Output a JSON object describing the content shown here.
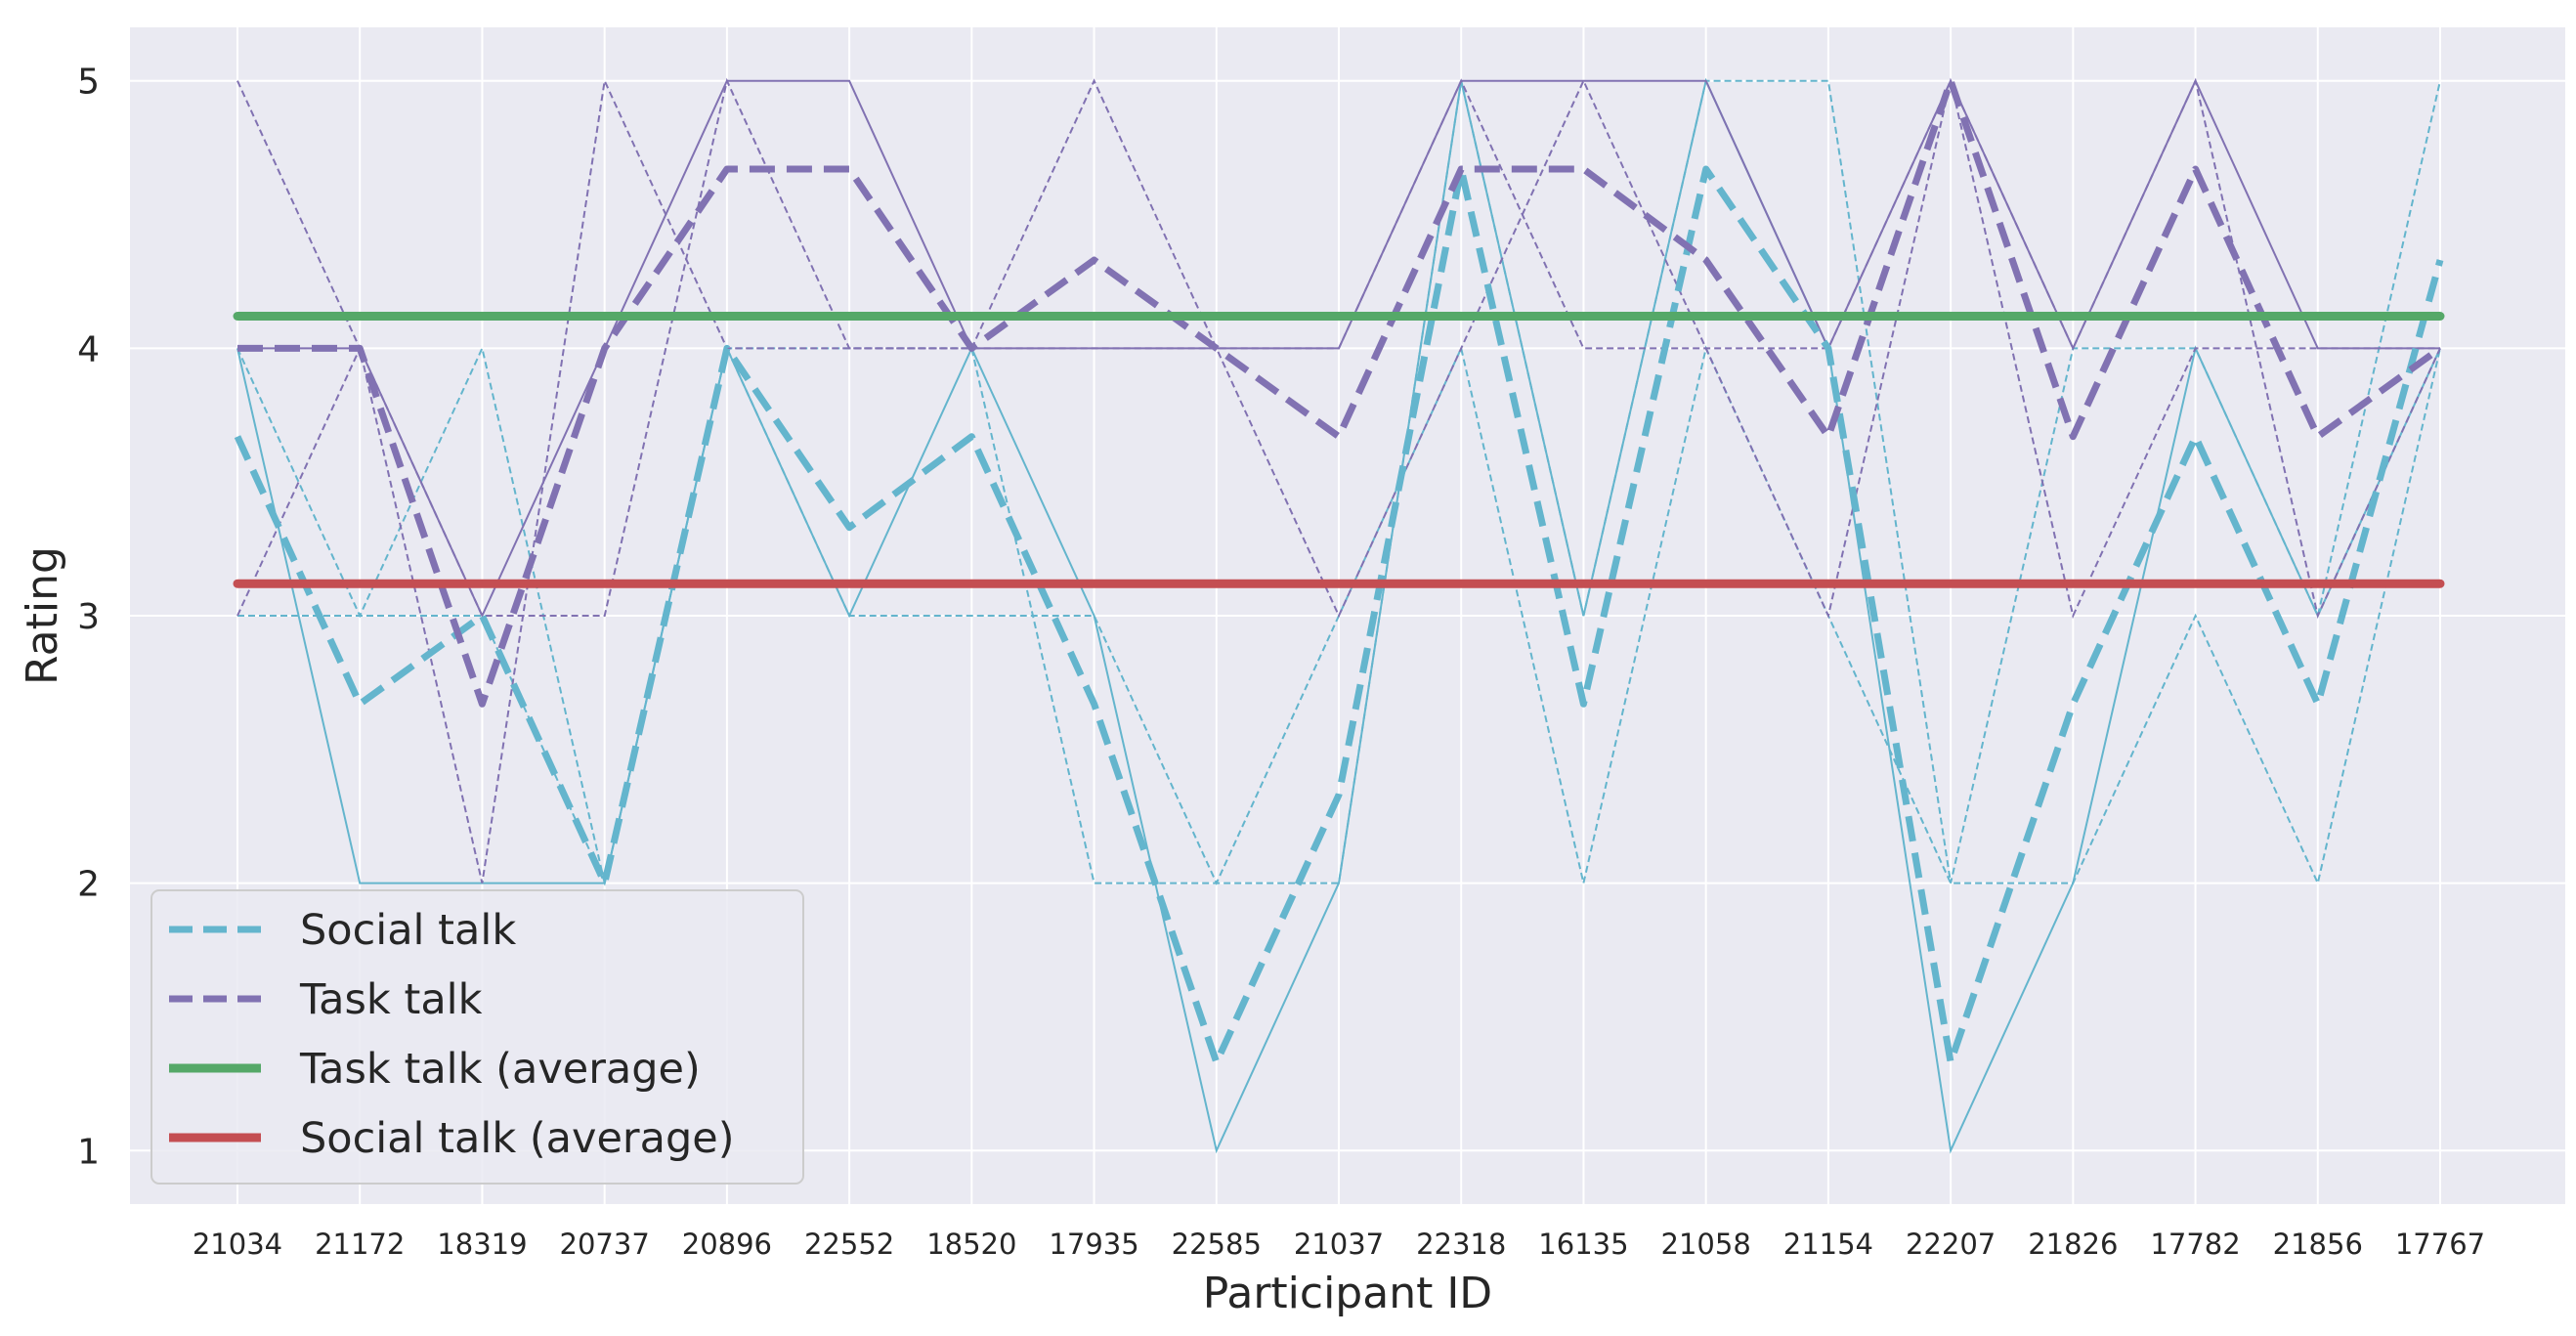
{
  "chart_data": {
    "type": "line",
    "title": "",
    "xlabel": "Participant ID",
    "ylabel": "Rating",
    "categories": [
      "21034",
      "21172",
      "18319",
      "20737",
      "20896",
      "22552",
      "18520",
      "17935",
      "22585",
      "21037",
      "22318",
      "16135",
      "21058",
      "21154",
      "22207",
      "21826",
      "17782",
      "21856",
      "17767"
    ],
    "ylim": [
      0.8,
      5.2
    ],
    "yticks": [
      1,
      2,
      3,
      4,
      5
    ],
    "grid": true,
    "legend_position": "lower-left",
    "colors": {
      "social": "#64b5cd",
      "task": "#8172b2",
      "task_avg": "#55a868",
      "social_avg": "#c44e52",
      "background": "#eaeaf2",
      "grid": "#ffffff"
    },
    "series": [
      {
        "name": "Social talk",
        "style": "dashed-thick",
        "color": "#64b5cd",
        "values": [
          3.67,
          2.67,
          3,
          2,
          4,
          3.33,
          3.67,
          2.67,
          1.33,
          2.33,
          4.67,
          2.67,
          4.67,
          4,
          1.33,
          2.67,
          3.67,
          2.67,
          4.33
        ]
      },
      {
        "name": "Task talk",
        "style": "dashed-thick",
        "color": "#8172b2",
        "values": [
          4,
          4,
          2.67,
          4,
          4.67,
          4.67,
          4,
          4.33,
          4,
          3.67,
          4.67,
          4.67,
          4.33,
          3.67,
          5,
          3.67,
          4.67,
          3.67,
          4
        ]
      },
      {
        "name": "Task talk (average)",
        "style": "solid-thick",
        "color": "#55a868",
        "values": [
          4.12,
          4.12,
          4.12,
          4.12,
          4.12,
          4.12,
          4.12,
          4.12,
          4.12,
          4.12,
          4.12,
          4.12,
          4.12,
          4.12,
          4.12,
          4.12,
          4.12,
          4.12,
          4.12
        ]
      },
      {
        "name": "Social talk (average)",
        "style": "solid-thick",
        "color": "#c44e52",
        "values": [
          3.12,
          3.12,
          3.12,
          3.12,
          3.12,
          3.12,
          3.12,
          3.12,
          3.12,
          3.12,
          3.12,
          3.12,
          3.12,
          3.12,
          3.12,
          3.12,
          3.12,
          3.12,
          3.12
        ]
      }
    ],
    "thin_series": [
      {
        "group": "social",
        "style": "dashed",
        "values": [
          4,
          3,
          4,
          2,
          4,
          3,
          3,
          3,
          2,
          3,
          4,
          2,
          4,
          3,
          2,
          2,
          3,
          2,
          4
        ]
      },
      {
        "group": "social",
        "style": "dashed",
        "values": [
          3,
          3,
          3,
          2,
          4,
          4,
          4,
          2,
          2,
          2,
          5,
          3,
          5,
          5,
          2,
          4,
          4,
          3,
          5
        ]
      },
      {
        "group": "social",
        "style": "solid",
        "values": [
          4,
          2,
          2,
          2,
          4,
          3,
          4,
          3,
          1,
          2,
          5,
          3,
          5,
          4,
          1,
          2,
          4,
          3,
          4
        ]
      },
      {
        "group": "task",
        "style": "dashed",
        "values": [
          5,
          4,
          2,
          5,
          4,
          4,
          4,
          5,
          4,
          4,
          5,
          4,
          4,
          4,
          5,
          3,
          4,
          4,
          4
        ]
      },
      {
        "group": "task",
        "style": "dashed",
        "values": [
          3,
          4,
          3,
          3,
          5,
          4,
          4,
          4,
          4,
          3,
          4,
          5,
          4,
          3,
          5,
          4,
          5,
          3,
          4
        ]
      },
      {
        "group": "task",
        "style": "solid",
        "values": [
          4,
          4,
          3,
          4,
          5,
          5,
          4,
          4,
          4,
          4,
          5,
          5,
          5,
          4,
          5,
          4,
          5,
          4,
          4
        ]
      }
    ],
    "legend": [
      {
        "label": "Social talk",
        "color": "#64b5cd",
        "style": "dashed"
      },
      {
        "label": "Task talk",
        "color": "#8172b2",
        "style": "dashed"
      },
      {
        "label": "Task talk (average)",
        "color": "#55a868",
        "style": "solid"
      },
      {
        "label": "Social talk (average)",
        "color": "#c44e52",
        "style": "solid"
      }
    ]
  }
}
